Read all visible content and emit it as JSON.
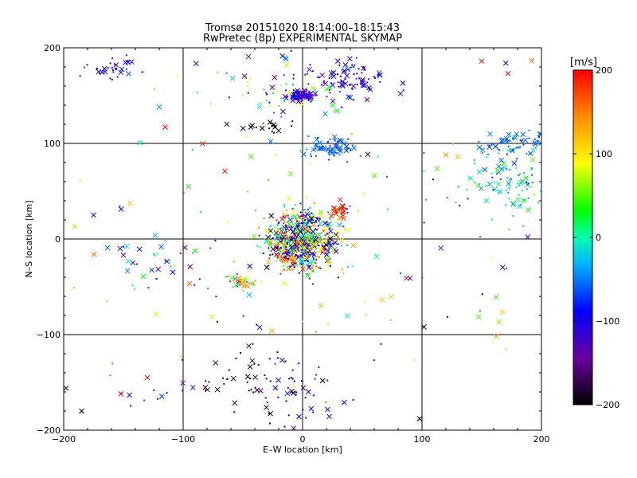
{
  "chart_data": {
    "type": "scatter",
    "title": "Tromsø 20151020 18:14:00–18:15:43",
    "subtitle": "RwPretec (8p) EXPERIMENTAL SKYMAP",
    "xlabel": "E–W location [km]",
    "ylabel": "N–S location [km]",
    "xlim": [
      -200,
      200
    ],
    "ylim": [
      -200,
      200
    ],
    "xticks": [
      -200,
      -100,
      0,
      100,
      200
    ],
    "yticks": [
      -200,
      -100,
      0,
      100,
      200
    ],
    "grid": true,
    "colorbar": {
      "label": "[m/s]",
      "range": [
        -200,
        200
      ],
      "ticks": [
        200,
        100,
        0,
        -100,
        -200
      ],
      "colormap": [
        "#000000",
        "#7a00a0",
        "#0000ff",
        "#00c8ff",
        "#00ff64",
        "#ffff00",
        "#ff8800",
        "#ff0000"
      ]
    },
    "marker_types": [
      "x",
      "dot"
    ],
    "clusters": [
      {
        "cx": 0,
        "cy": 0,
        "sx": 14,
        "sy": 16,
        "n": 520,
        "vmin": -200,
        "vmax": 200
      },
      {
        "cx": -10,
        "cy": -15,
        "sx": 10,
        "sy": 8,
        "n": 120,
        "vmin": -200,
        "vmax": 200
      },
      {
        "cx": 30,
        "cy": 30,
        "sx": 4,
        "sy": 3,
        "n": 30,
        "vmin": 170,
        "vmax": 200
      },
      {
        "cx": -50,
        "cy": -45,
        "sx": 8,
        "sy": 4,
        "n": 40,
        "vmin": -80,
        "vmax": 200
      },
      {
        "cx": 0,
        "cy": 150,
        "sx": 5,
        "sy": 3,
        "n": 80,
        "vmin": -140,
        "vmax": -90
      },
      {
        "cx": 40,
        "cy": 165,
        "sx": 15,
        "sy": 10,
        "n": 90,
        "vmin": -160,
        "vmax": -60
      },
      {
        "cx": -20,
        "cy": 160,
        "sx": 25,
        "sy": 20,
        "n": 60,
        "vmin": -160,
        "vmax": 100
      },
      {
        "cx": 25,
        "cy": 95,
        "sx": 12,
        "sy": 6,
        "n": 70,
        "vmin": -80,
        "vmax": -40
      },
      {
        "cx": -30,
        "cy": 118,
        "sx": 12,
        "sy": 3,
        "n": 18,
        "vmin": -200,
        "vmax": -190
      },
      {
        "cx": 180,
        "cy": 100,
        "sx": 14,
        "sy": 6,
        "n": 60,
        "vmin": -80,
        "vmax": -40
      },
      {
        "cx": 175,
        "cy": 60,
        "sx": 25,
        "sy": 15,
        "n": 110,
        "vmin": -80,
        "vmax": 60
      },
      {
        "cx": -155,
        "cy": 180,
        "sx": 15,
        "sy": 6,
        "n": 35,
        "vmin": -140,
        "vmax": -60
      },
      {
        "cx": -40,
        "cy": -150,
        "sx": 25,
        "sy": 25,
        "n": 60,
        "vmin": -200,
        "vmax": -160
      },
      {
        "cx": -120,
        "cy": -20,
        "sx": 20,
        "sy": 15,
        "n": 30,
        "vmin": -160,
        "vmax": 40
      },
      {
        "cx": 0,
        "cy": -160,
        "sx": 20,
        "sy": 25,
        "n": 35,
        "vmin": -120,
        "vmax": -60
      },
      {
        "cx": -110,
        "cy": -160,
        "sx": 15,
        "sy": 10,
        "n": 12,
        "vmin": -160,
        "vmax": -60
      },
      {
        "cx": 0,
        "cy": 0,
        "sx": 110,
        "sy": 110,
        "n": 160,
        "vmin": -200,
        "vmax": 200
      }
    ],
    "highlight_points": [
      {
        "x": 150,
        "y": 186,
        "v": 200,
        "m": "x"
      },
      {
        "x": 172,
        "y": 173,
        "v": 200,
        "m": "x"
      },
      {
        "x": -115,
        "y": 117,
        "v": 200,
        "m": "x"
      },
      {
        "x": -130,
        "y": -145,
        "v": 200,
        "m": "x"
      },
      {
        "x": -152,
        "y": -162,
        "v": 200,
        "m": "x"
      },
      {
        "x": 87,
        "y": -41,
        "v": 200,
        "m": "x"
      },
      {
        "x": -175,
        "y": 25,
        "v": -80,
        "m": "x"
      },
      {
        "x": 130,
        "y": 86,
        "v": 120,
        "m": "x"
      },
      {
        "x": -65,
        "y": 71,
        "v": 200,
        "m": "x"
      },
      {
        "x": 98,
        "y": -188,
        "v": -200,
        "m": "x"
      },
      {
        "x": -198,
        "y": -156,
        "v": -200,
        "m": "x"
      },
      {
        "x": -185,
        "y": -180,
        "v": -200,
        "m": "x"
      },
      {
        "x": 120,
        "y": 88,
        "v": 140,
        "m": "x"
      },
      {
        "x": -120,
        "y": 138,
        "v": -40,
        "m": "x"
      },
      {
        "x": 62,
        "y": -18,
        "v": 0,
        "m": "x"
      },
      {
        "x": -10,
        "y": 68,
        "v": 60,
        "m": "x"
      }
    ]
  }
}
